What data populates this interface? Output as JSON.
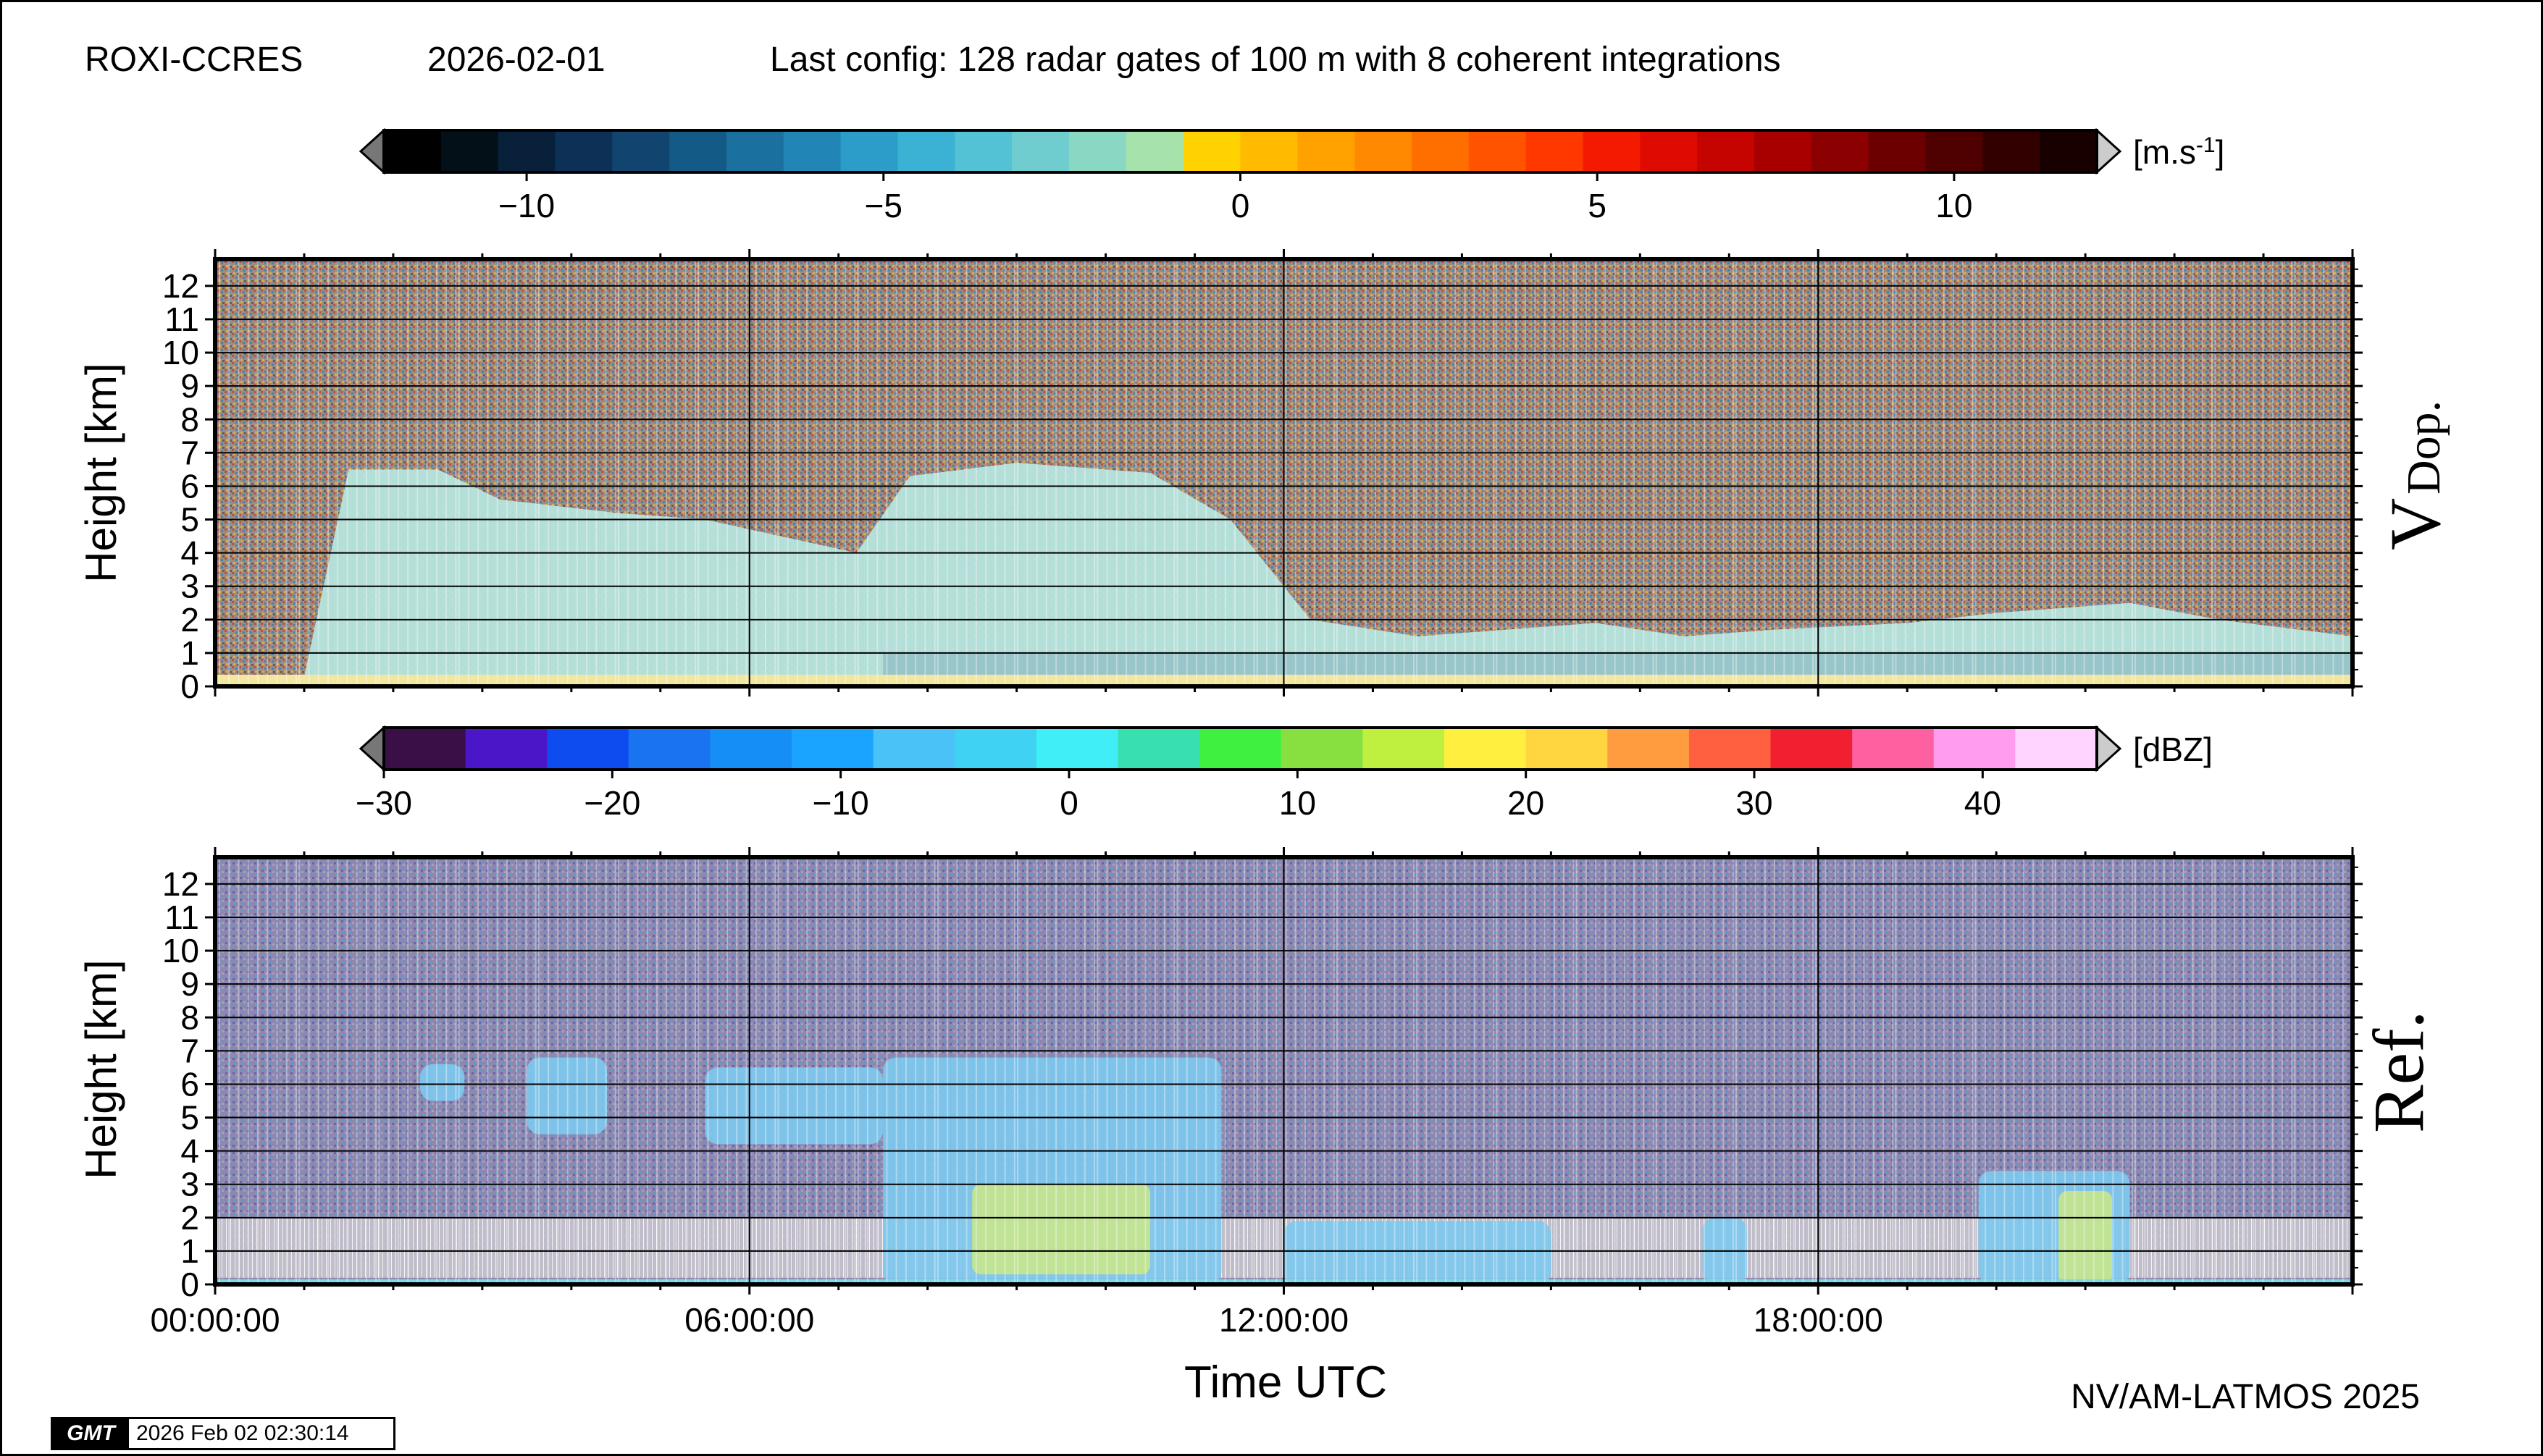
{
  "header": {
    "station": "ROXI-CCRES",
    "date": "2026-02-01",
    "config": "Last config: 128 radar gates of 100 m with 8 coherent integrations"
  },
  "footer": {
    "credit": "NV/AM-LATMOS 2025",
    "gmt_logo": "GMT",
    "timestamp": "2026 Feb 02 02:30:14"
  },
  "chart_data": [
    {
      "type": "heatmap",
      "panel_label": "V",
      "panel_label_sub": "Dop.",
      "xlabel": "",
      "ylabel": "Height [km]",
      "ylim": [
        0,
        12.8
      ],
      "y_ticks": [
        "0",
        "1",
        "2",
        "3",
        "4",
        "5",
        "6",
        "7",
        "8",
        "9",
        "10",
        "11",
        "12"
      ],
      "xlim_hours": [
        0,
        24
      ],
      "grid": true,
      "colorbar": {
        "unit": "[m.s-1]",
        "unit_base": "[m.s",
        "unit_sup": "-1",
        "unit_close": "]",
        "range": [
          -12,
          12
        ],
        "ticks": [
          "−10",
          "−5",
          "0",
          "5",
          "10"
        ],
        "tick_values": [
          -10,
          -5,
          0,
          5,
          10
        ],
        "colors": [
          "#000000",
          "#041018",
          "#08203a",
          "#0d3156",
          "#11456f",
          "#145a87",
          "#1a709f",
          "#2186b5",
          "#2b9dc8",
          "#3bb2d4",
          "#52c2d4",
          "#6fcdd0",
          "#8ad8c4",
          "#a6e3ac",
          "#ffd200",
          "#ffbb00",
          "#ffa200",
          "#ff8900",
          "#ff6f00",
          "#ff5300",
          "#ff3800",
          "#f41a00",
          "#df0b00",
          "#c50400",
          "#a80000",
          "#8b0000",
          "#6c0000",
          "#4f0000",
          "#330000",
          "#180000"
        ]
      },
      "layers": [
        {
          "label": "noise",
          "color": "#9a8a82"
        },
        {
          "label": "echo",
          "color": "#b6e4dd"
        },
        {
          "label": "surface",
          "color": "#f1e7a0"
        }
      ],
      "echo_top_km": [
        {
          "t": 0.0,
          "h": 0.3
        },
        {
          "t": 1.0,
          "h": 0.3
        },
        {
          "t": 1.5,
          "h": 6.5
        },
        {
          "t": 2.5,
          "h": 6.5
        },
        {
          "t": 3.2,
          "h": 5.6
        },
        {
          "t": 4.5,
          "h": 5.2
        },
        {
          "t": 5.5,
          "h": 5.0
        },
        {
          "t": 7.2,
          "h": 4.0
        },
        {
          "t": 7.8,
          "h": 6.3
        },
        {
          "t": 9.0,
          "h": 6.7
        },
        {
          "t": 10.5,
          "h": 6.4
        },
        {
          "t": 11.4,
          "h": 5.0
        },
        {
          "t": 12.3,
          "h": 2.0
        },
        {
          "t": 13.5,
          "h": 1.5
        },
        {
          "t": 15.5,
          "h": 1.9
        },
        {
          "t": 16.5,
          "h": 1.5
        },
        {
          "t": 17.5,
          "h": 1.7
        },
        {
          "t": 19.0,
          "h": 1.9
        },
        {
          "t": 20.0,
          "h": 2.2
        },
        {
          "t": 21.5,
          "h": 2.5
        },
        {
          "t": 22.5,
          "h": 2.0
        },
        {
          "t": 24.0,
          "h": 1.5
        }
      ]
    },
    {
      "type": "heatmap",
      "panel_label": "Ref.",
      "xlabel": "Time UTC",
      "ylabel": "Height [km]",
      "ylim": [
        0,
        12.8
      ],
      "y_ticks": [
        "0",
        "1",
        "2",
        "3",
        "4",
        "5",
        "6",
        "7",
        "8",
        "9",
        "10",
        "11",
        "12"
      ],
      "xlim_hours": [
        0,
        24
      ],
      "x_ticks": [
        "00:00:00",
        "06:00:00",
        "12:00:00",
        "18:00:00"
      ],
      "x_tick_hours": [
        0,
        6,
        12,
        18
      ],
      "grid": true,
      "colorbar": {
        "unit": "[dBZ]",
        "range": [
          -30,
          45
        ],
        "ticks": [
          "−30",
          "−20",
          "−10",
          "0",
          "10",
          "20",
          "30",
          "40"
        ],
        "tick_values": [
          -30,
          -20,
          -10,
          0,
          10,
          20,
          30,
          40
        ],
        "colors": [
          "#3a0f47",
          "#4a16c8",
          "#0f4cf0",
          "#1a73f0",
          "#158ef5",
          "#1aa4ff",
          "#4ac2f7",
          "#40d2f2",
          "#40eef7",
          "#38e0b0",
          "#40f040",
          "#88e040",
          "#bff040",
          "#fff040",
          "#ffd640",
          "#ff9c40",
          "#ff6040",
          "#f02030",
          "#ff60a0",
          "#ff9cf0",
          "#ffd4ff"
        ]
      },
      "layers": [
        {
          "label": "noise",
          "color": "#8c84a8"
        },
        {
          "label": "cloud",
          "color": "#7ec8ee"
        },
        {
          "label": "core",
          "color": "#c8e68c"
        },
        {
          "label": "low-level",
          "color": "#c8c4d0"
        }
      ],
      "cloud_regions": [
        {
          "t0": 2.3,
          "t1": 2.8,
          "h0": 5.5,
          "h1": 6.6
        },
        {
          "t0": 3.5,
          "t1": 4.4,
          "h0": 4.5,
          "h1": 6.8
        },
        {
          "t0": 5.5,
          "t1": 7.5,
          "h0": 4.2,
          "h1": 6.5
        },
        {
          "t0": 7.5,
          "t1": 11.3,
          "h0": 0.0,
          "h1": 6.8
        },
        {
          "t0": 12.0,
          "t1": 15.0,
          "h0": 0.0,
          "h1": 1.9
        },
        {
          "t0": 16.7,
          "t1": 17.2,
          "h0": 0.0,
          "h1": 2.0
        },
        {
          "t0": 19.8,
          "t1": 21.5,
          "h0": 0.0,
          "h1": 3.4
        }
      ],
      "core_regions": [
        {
          "t0": 8.5,
          "t1": 10.5,
          "h0": 0.3,
          "h1": 3.0
        },
        {
          "t0": 20.7,
          "t1": 21.3,
          "h0": 0.0,
          "h1": 2.8
        }
      ]
    }
  ]
}
